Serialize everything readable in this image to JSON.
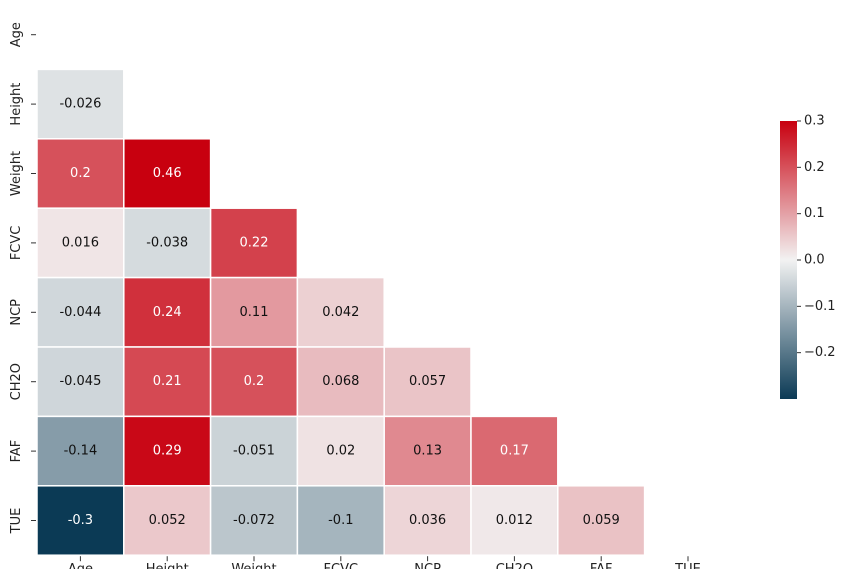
{
  "chart_data": {
    "type": "heatmap",
    "subtype": "lower-triangle correlation matrix",
    "variables": [
      "Age",
      "Height",
      "Weight",
      "FCVC",
      "NCP",
      "CH2O",
      "FAF",
      "TUE"
    ],
    "cells": [
      {
        "row": "Height",
        "col": "Age",
        "value": -0.026,
        "label": "-0.026"
      },
      {
        "row": "Weight",
        "col": "Age",
        "value": 0.2,
        "label": "0.2"
      },
      {
        "row": "Weight",
        "col": "Height",
        "value": 0.46,
        "label": "0.46"
      },
      {
        "row": "FCVC",
        "col": "Age",
        "value": 0.016,
        "label": "0.016"
      },
      {
        "row": "FCVC",
        "col": "Height",
        "value": -0.038,
        "label": "-0.038"
      },
      {
        "row": "FCVC",
        "col": "Weight",
        "value": 0.22,
        "label": "0.22"
      },
      {
        "row": "NCP",
        "col": "Age",
        "value": -0.044,
        "label": "-0.044"
      },
      {
        "row": "NCP",
        "col": "Height",
        "value": 0.24,
        "label": "0.24"
      },
      {
        "row": "NCP",
        "col": "Weight",
        "value": 0.11,
        "label": "0.11"
      },
      {
        "row": "NCP",
        "col": "FCVC",
        "value": 0.042,
        "label": "0.042"
      },
      {
        "row": "CH2O",
        "col": "Age",
        "value": -0.045,
        "label": "-0.045"
      },
      {
        "row": "CH2O",
        "col": "Height",
        "value": 0.21,
        "label": "0.21"
      },
      {
        "row": "CH2O",
        "col": "Weight",
        "value": 0.2,
        "label": "0.2"
      },
      {
        "row": "CH2O",
        "col": "FCVC",
        "value": 0.068,
        "label": "0.068"
      },
      {
        "row": "CH2O",
        "col": "NCP",
        "value": 0.057,
        "label": "0.057"
      },
      {
        "row": "FAF",
        "col": "Age",
        "value": -0.14,
        "label": "-0.14"
      },
      {
        "row": "FAF",
        "col": "Height",
        "value": 0.29,
        "label": "0.29"
      },
      {
        "row": "FAF",
        "col": "Weight",
        "value": -0.051,
        "label": "-0.051"
      },
      {
        "row": "FAF",
        "col": "FCVC",
        "value": 0.02,
        "label": "0.02"
      },
      {
        "row": "FAF",
        "col": "NCP",
        "value": 0.13,
        "label": "0.13"
      },
      {
        "row": "FAF",
        "col": "CH2O",
        "value": 0.17,
        "label": "0.17"
      },
      {
        "row": "TUE",
        "col": "Age",
        "value": -0.3,
        "label": "-0.3"
      },
      {
        "row": "TUE",
        "col": "Height",
        "value": 0.052,
        "label": "0.052"
      },
      {
        "row": "TUE",
        "col": "Weight",
        "value": -0.072,
        "label": "-0.072"
      },
      {
        "row": "TUE",
        "col": "FCVC",
        "value": -0.1,
        "label": "-0.1"
      },
      {
        "row": "TUE",
        "col": "NCP",
        "value": 0.036,
        "label": "0.036"
      },
      {
        "row": "TUE",
        "col": "CH2O",
        "value": 0.012,
        "label": "0.012"
      },
      {
        "row": "TUE",
        "col": "FAF",
        "value": 0.059,
        "label": "0.059"
      }
    ],
    "colorbar": {
      "range": [
        -0.3,
        0.3
      ],
      "ticks": [
        0.3,
        0.2,
        0.1,
        0.0,
        -0.1,
        -0.2
      ],
      "tick_labels": [
        "0.3",
        "0.2",
        "0.1",
        "0.0",
        "−0.1",
        "−0.2"
      ],
      "colormap": "diverging blue-white-red",
      "colors": {
        "negative": "#0b3a55",
        "center": "#f2f2f2",
        "positive": "#c8000f"
      }
    },
    "title": "",
    "xlabel": "",
    "ylabel": "",
    "grid": false,
    "legend_placement": "right"
  }
}
